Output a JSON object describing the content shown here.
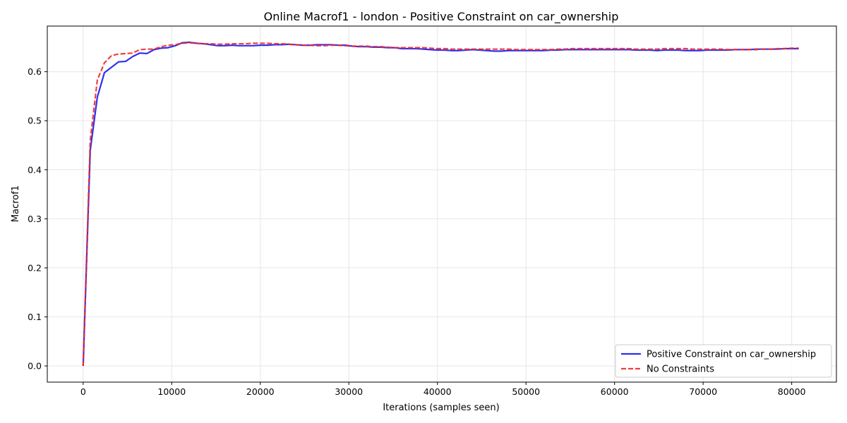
{
  "chart_data": {
    "type": "line",
    "title": "Online Macrof1 - london - Positive Constraint on car_ownership",
    "xlabel": "Iterations (samples seen)",
    "ylabel": "Macrof1",
    "xlim": [
      -4050,
      85050
    ],
    "ylim": [
      -0.033,
      0.693
    ],
    "xticks": [
      0,
      10000,
      20000,
      30000,
      40000,
      50000,
      60000,
      70000,
      80000
    ],
    "xtick_labels": [
      "0",
      "10000",
      "20000",
      "30000",
      "40000",
      "50000",
      "60000",
      "70000",
      "80000"
    ],
    "yticks": [
      0.0,
      0.1,
      0.2,
      0.3,
      0.4,
      0.5,
      0.6
    ],
    "ytick_labels": [
      "0.0",
      "0.1",
      "0.2",
      "0.3",
      "0.4",
      "0.5",
      "0.6"
    ],
    "grid": true,
    "legend_position": "lower-right",
    "series": [
      {
        "name": "Positive Constraint on car_ownership",
        "color": "#1a1aee",
        "style": "solid",
        "x": [
          0,
          800,
          1600,
          2400,
          3200,
          4000,
          4800,
          5600,
          6400,
          7200,
          8000,
          8800,
          9600,
          10400,
          11200,
          12000,
          12800,
          13600,
          14400,
          15200,
          16000,
          16800,
          17600,
          18400,
          19200,
          20000,
          20800,
          21600,
          22400,
          23200,
          24000,
          24800,
          25600,
          26400,
          27200,
          28000,
          28800,
          29600,
          30400,
          31200,
          32000,
          32800,
          33600,
          34400,
          35200,
          36000,
          36800,
          37600,
          38400,
          39200,
          40000,
          40800,
          41600,
          42400,
          43200,
          44000,
          44800,
          45600,
          46400,
          47200,
          48000,
          48800,
          49600,
          50400,
          51200,
          52000,
          52800,
          53600,
          54400,
          55200,
          56000,
          56800,
          57600,
          58400,
          59200,
          60000,
          60800,
          61600,
          62400,
          63200,
          64000,
          64800,
          65600,
          66400,
          67200,
          68000,
          68800,
          69600,
          70400,
          71200,
          72000,
          72800,
          73600,
          74400,
          75200,
          76000,
          76800,
          77600,
          78400,
          79200,
          80000,
          80800
        ],
        "y": [
          0.0,
          0.44,
          0.548,
          0.598,
          0.609,
          0.62,
          0.621,
          0.631,
          0.638,
          0.637,
          0.645,
          0.648,
          0.649,
          0.653,
          0.659,
          0.66,
          0.658,
          0.657,
          0.655,
          0.653,
          0.653,
          0.654,
          0.653,
          0.653,
          0.653,
          0.654,
          0.654,
          0.655,
          0.655,
          0.656,
          0.655,
          0.654,
          0.654,
          0.655,
          0.655,
          0.655,
          0.654,
          0.654,
          0.652,
          0.651,
          0.651,
          0.65,
          0.65,
          0.649,
          0.649,
          0.647,
          0.647,
          0.647,
          0.646,
          0.645,
          0.644,
          0.644,
          0.643,
          0.643,
          0.644,
          0.645,
          0.644,
          0.643,
          0.642,
          0.642,
          0.643,
          0.643,
          0.643,
          0.643,
          0.643,
          0.643,
          0.644,
          0.644,
          0.645,
          0.645,
          0.645,
          0.645,
          0.645,
          0.645,
          0.645,
          0.645,
          0.645,
          0.645,
          0.644,
          0.644,
          0.644,
          0.643,
          0.644,
          0.644,
          0.644,
          0.643,
          0.643,
          0.643,
          0.644,
          0.644,
          0.644,
          0.644,
          0.645,
          0.645,
          0.645,
          0.646,
          0.646,
          0.646,
          0.646,
          0.647,
          0.647,
          0.647
        ]
      },
      {
        "name": "No Constraints",
        "color": "#ee2a2a",
        "style": "dashed",
        "x": [
          0,
          800,
          1600,
          2400,
          3200,
          4000,
          4800,
          5600,
          6400,
          7200,
          8000,
          8800,
          9600,
          10400,
          11200,
          12000,
          12800,
          13600,
          14400,
          15200,
          16000,
          16800,
          17600,
          18400,
          19200,
          20000,
          20800,
          21600,
          22400,
          23200,
          24000,
          24800,
          25600,
          26400,
          27200,
          28000,
          28800,
          29600,
          30400,
          31200,
          32000,
          32800,
          33600,
          34400,
          35200,
          36000,
          36800,
          37600,
          38400,
          39200,
          40000,
          40800,
          41600,
          42400,
          43200,
          44000,
          44800,
          45600,
          46400,
          47200,
          48000,
          48800,
          49600,
          50400,
          51200,
          52000,
          52800,
          53600,
          54400,
          55200,
          56000,
          56800,
          57600,
          58400,
          59200,
          60000,
          60800,
          61600,
          62400,
          63200,
          64000,
          64800,
          65600,
          66400,
          67200,
          68000,
          68800,
          69600,
          70400,
          71200,
          72000,
          72800,
          73600,
          74400,
          75200,
          76000,
          76800,
          77600,
          78400,
          79200,
          80000,
          80800
        ],
        "y": [
          0.0,
          0.46,
          0.583,
          0.618,
          0.633,
          0.636,
          0.637,
          0.638,
          0.645,
          0.646,
          0.646,
          0.651,
          0.654,
          0.655,
          0.658,
          0.659,
          0.658,
          0.657,
          0.657,
          0.656,
          0.656,
          0.657,
          0.657,
          0.657,
          0.658,
          0.658,
          0.658,
          0.657,
          0.657,
          0.656,
          0.655,
          0.654,
          0.654,
          0.653,
          0.653,
          0.654,
          0.654,
          0.653,
          0.652,
          0.652,
          0.652,
          0.651,
          0.651,
          0.65,
          0.649,
          0.649,
          0.649,
          0.649,
          0.649,
          0.648,
          0.647,
          0.647,
          0.646,
          0.646,
          0.646,
          0.646,
          0.646,
          0.646,
          0.646,
          0.646,
          0.646,
          0.645,
          0.645,
          0.645,
          0.645,
          0.645,
          0.645,
          0.646,
          0.646,
          0.647,
          0.647,
          0.647,
          0.647,
          0.647,
          0.647,
          0.647,
          0.647,
          0.647,
          0.646,
          0.646,
          0.646,
          0.646,
          0.647,
          0.647,
          0.647,
          0.647,
          0.646,
          0.646,
          0.646,
          0.646,
          0.646,
          0.645,
          0.645,
          0.645,
          0.645,
          0.645,
          0.646,
          0.646,
          0.647,
          0.647,
          0.648,
          0.648
        ]
      }
    ]
  }
}
